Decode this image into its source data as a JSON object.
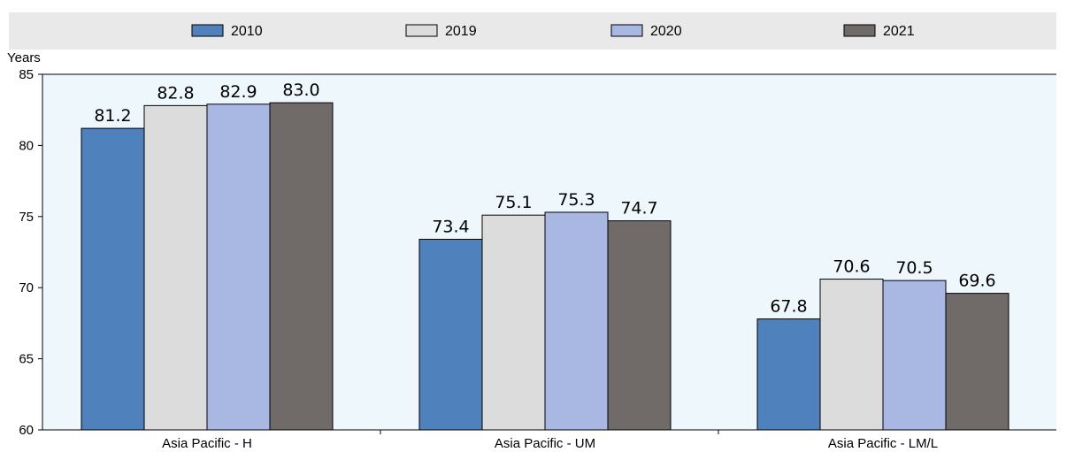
{
  "colors": {
    "series": [
      "#4f81bd",
      "#dcdcdc",
      "#a9b8e3",
      "#706b69"
    ],
    "plot_background": "#eef8fc",
    "legend_background": "#e9e9e9",
    "bar_border": "#000000"
  },
  "chart_data": {
    "type": "bar",
    "ylabel": "Years",
    "ylim": [
      60,
      85
    ],
    "yticks": [
      60,
      65,
      70,
      75,
      80,
      85
    ],
    "grid": false,
    "legend_position": "top",
    "categories": [
      "Asia Pacific - H",
      "Asia Pacific - UM",
      "Asia Pacific - LM/L"
    ],
    "series": [
      {
        "name": "2010",
        "values": [
          81.2,
          73.4,
          67.8
        ]
      },
      {
        "name": "2019",
        "values": [
          82.8,
          75.1,
          70.6
        ]
      },
      {
        "name": "2020",
        "values": [
          82.9,
          75.3,
          70.5
        ]
      },
      {
        "name": "2021",
        "values": [
          83.0,
          74.7,
          69.6
        ]
      }
    ]
  }
}
